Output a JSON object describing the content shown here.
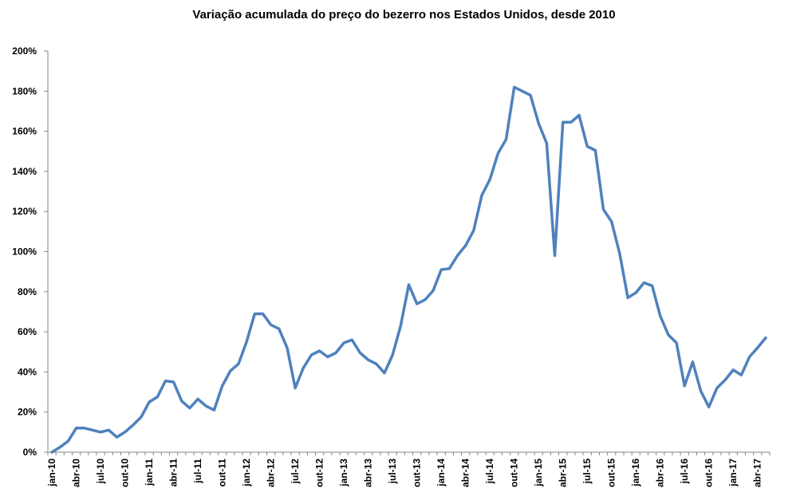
{
  "chart_data": {
    "type": "line",
    "title": "Variação acumulada do preço do bezerro nos Estados Unidos, desde 2010",
    "xlabel": "",
    "ylabel": "",
    "ylim": [
      0,
      200
    ],
    "y_ticks": [
      "0%",
      "20%",
      "40%",
      "60%",
      "80%",
      "100%",
      "120%",
      "140%",
      "160%",
      "180%",
      "200%"
    ],
    "x_tick_labels": [
      "jan-10",
      "abr-10",
      "jul-10",
      "out-10",
      "jan-11",
      "abr-11",
      "jul-11",
      "out-11",
      "jan-12",
      "abr-12",
      "jul-12",
      "out-12",
      "jan-13",
      "abr-13",
      "jul-13",
      "out-13",
      "jan-14",
      "abr-14",
      "jul-14",
      "out-14",
      "jan-15",
      "abr-15",
      "jul-15",
      "out-15",
      "jan-16",
      "abr-16",
      "jul-16",
      "out-16",
      "jan-17",
      "abr-17"
    ],
    "grid": false,
    "line_color": "#4f81bd",
    "series": [
      {
        "name": "",
        "values": [
          0,
          2.5,
          5.5,
          12,
          12,
          11,
          10,
          11,
          7.5,
          10,
          13.5,
          17.5,
          25,
          27.5,
          35.5,
          35,
          25.5,
          22,
          26.5,
          23,
          21,
          33,
          40.5,
          44,
          55,
          69,
          69,
          63.5,
          61.5,
          52,
          32,
          42,
          48.5,
          50.5,
          47.5,
          49.5,
          54.5,
          56,
          49.5,
          46,
          44,
          39.5,
          48.5,
          63,
          83.5,
          74,
          76,
          80.5,
          91,
          91.5,
          98,
          103,
          110.5,
          128,
          136,
          149,
          156,
          182,
          180,
          178,
          164,
          154,
          98,
          164.5,
          164.5,
          168,
          152.5,
          150.5,
          121,
          115,
          99,
          77,
          79.5,
          84.5,
          83,
          68,
          58.5,
          54.5,
          33,
          45,
          30.5,
          22.5,
          32,
          36,
          41,
          38.5,
          47.5,
          52,
          57
        ]
      }
    ]
  }
}
